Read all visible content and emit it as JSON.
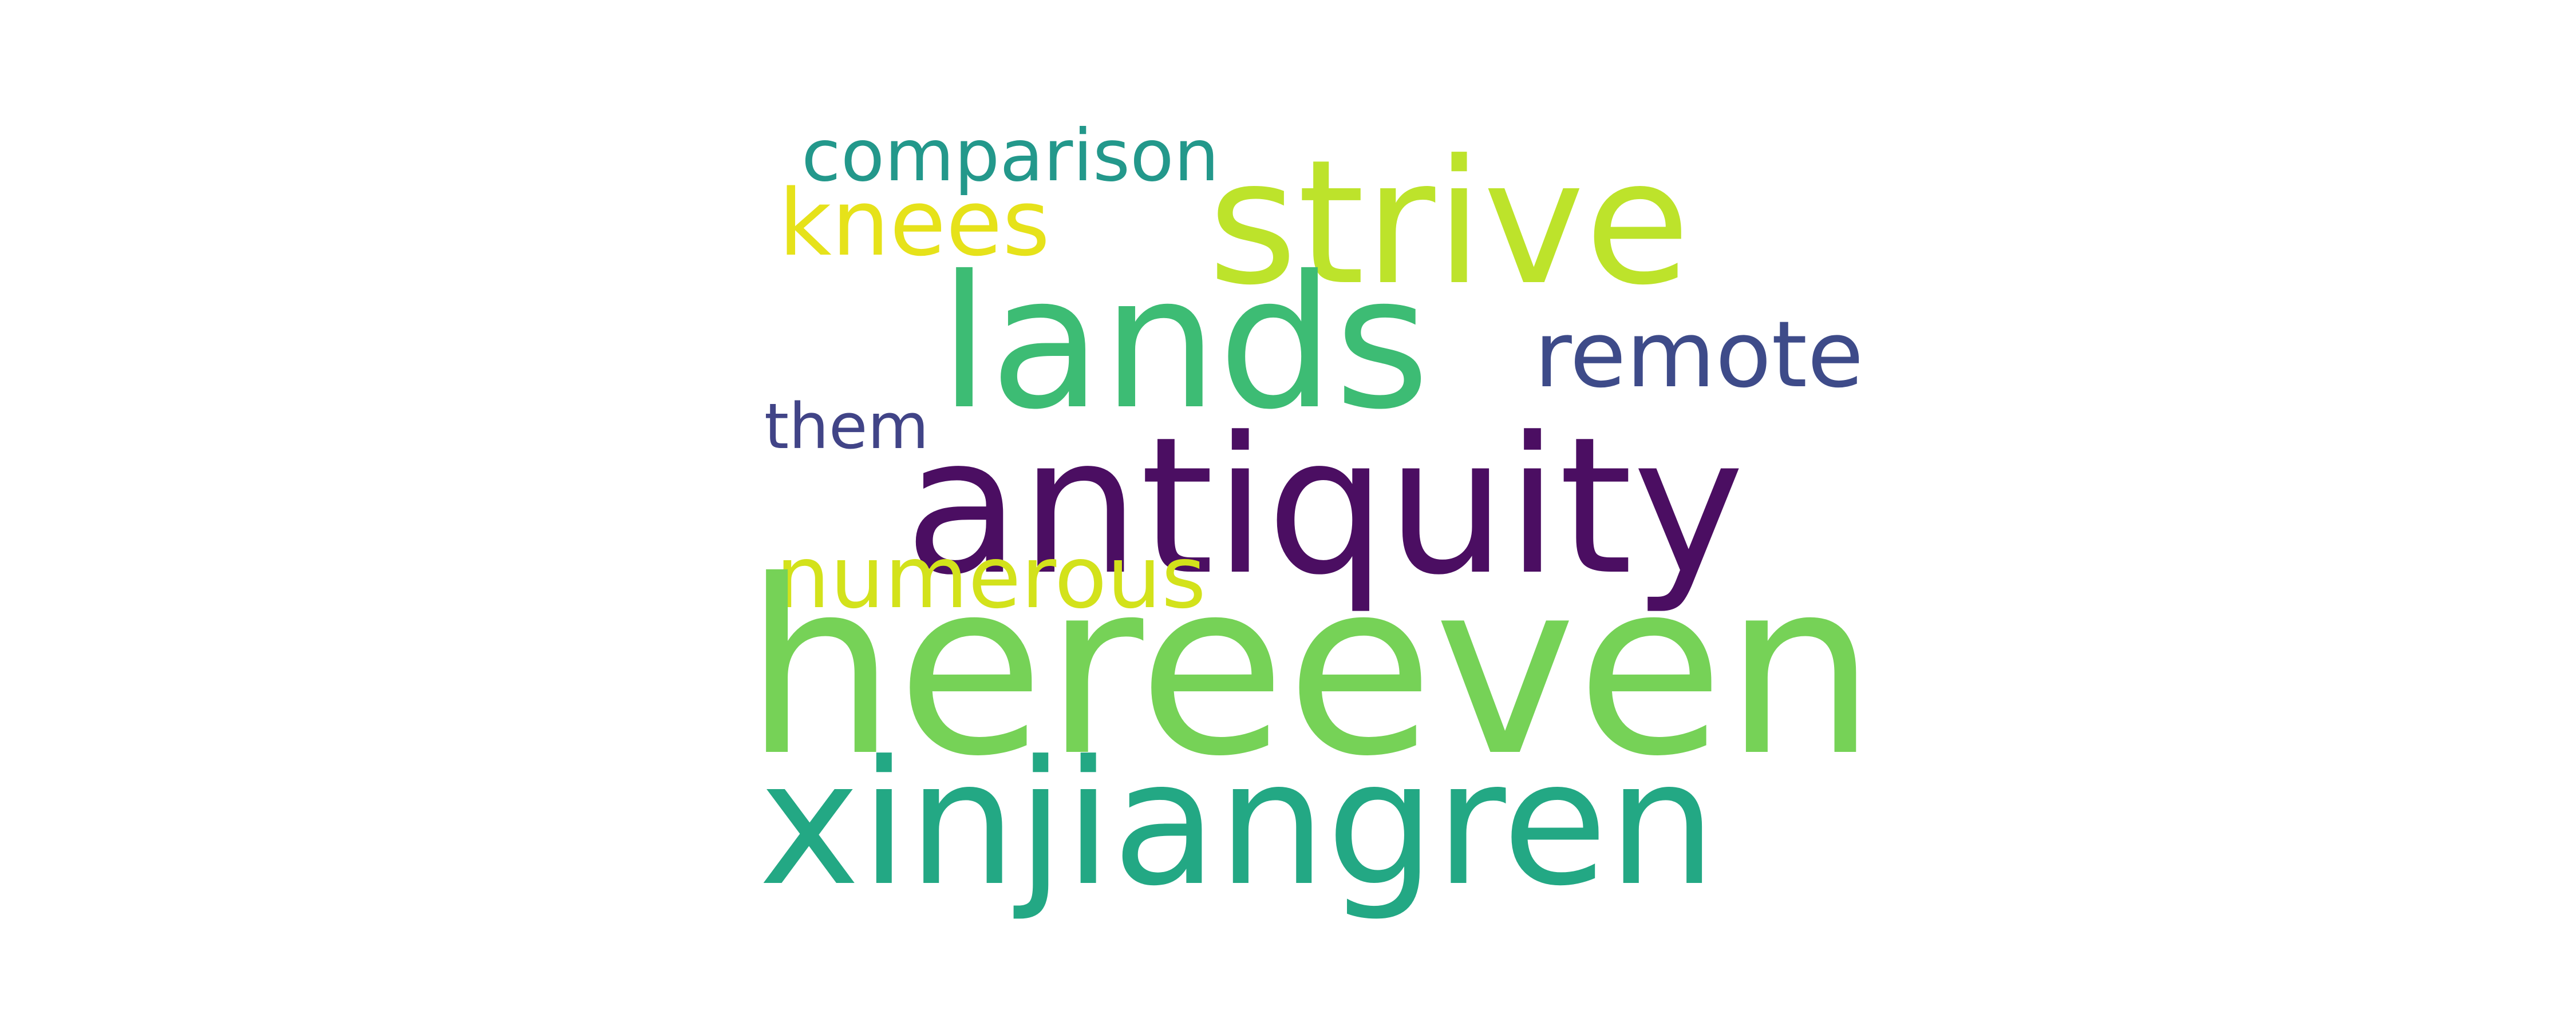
{
  "words": {
    "antiquity": {
      "text": "antiquity",
      "color": "#4b0e62"
    },
    "hereeven": {
      "text": "hereeven",
      "color": "#76d257"
    },
    "xinjiangren": {
      "text": "xinjiangren",
      "color": "#23a884"
    },
    "lands": {
      "text": "lands",
      "color": "#3dbc74"
    },
    "strive": {
      "text": "strive",
      "color": "#bde32b"
    },
    "remote": {
      "text": "remote",
      "color": "#3e4b89"
    },
    "comparison": {
      "text": "comparison",
      "color": "#23988b"
    },
    "knees": {
      "text": "knees",
      "color": "#e6e21a"
    },
    "them": {
      "text": "them",
      "color": "#414487"
    },
    "numerous": {
      "text": "numerous",
      "color": "#d3e21b"
    }
  }
}
